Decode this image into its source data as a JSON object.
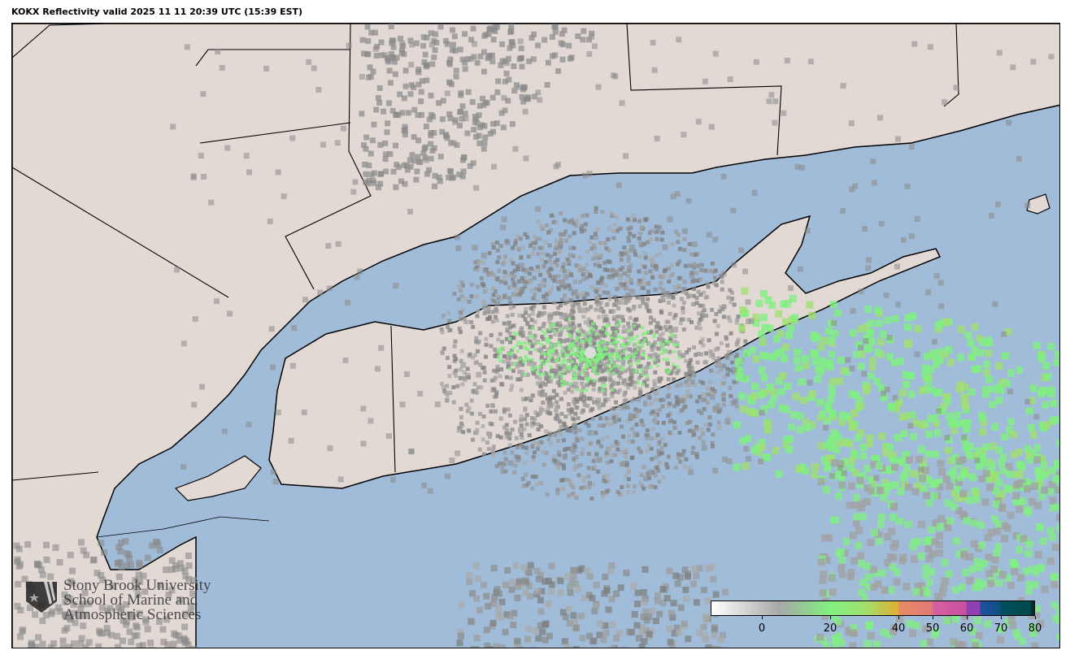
{
  "title": "KOKX Reflectivity valid 2025 11 11 20:39 UTC (15:39 EST)",
  "map": {
    "ocean_color": "#a0bcd8",
    "land_color": "#e2d9d5",
    "radar_site": "KOKX"
  },
  "logo": {
    "line1": "Stony Brook University",
    "line2": "School of Marine and",
    "line3": "Atmospheric Sciences"
  },
  "colorbar": {
    "min": -15,
    "max": 80,
    "ticks": [
      {
        "value": 0,
        "label": "0"
      },
      {
        "value": 20,
        "label": "20"
      },
      {
        "value": 40,
        "label": "40"
      },
      {
        "value": 50,
        "label": "50"
      },
      {
        "value": 60,
        "label": "60"
      },
      {
        "value": 70,
        "label": "70"
      },
      {
        "value": 80,
        "label": "80"
      }
    ],
    "stops": [
      {
        "value": -15,
        "color": "#ffffff"
      },
      {
        "value": 5,
        "color": "#a8a8a8"
      },
      {
        "value": 20,
        "color": "#80f080"
      },
      {
        "value": 30,
        "color": "#a0e070"
      },
      {
        "value": 40,
        "color": "#e0b030"
      },
      {
        "value": 40.1,
        "color": "#e88c60"
      },
      {
        "value": 50,
        "color": "#e07878"
      },
      {
        "value": 50.1,
        "color": "#d860a0"
      },
      {
        "value": 60,
        "color": "#c850a0"
      },
      {
        "value": 60.1,
        "color": "#9040b0"
      },
      {
        "value": 64,
        "color": "#9040b0"
      },
      {
        "value": 64.1,
        "color": "#2050a0"
      },
      {
        "value": 70,
        "color": "#105080"
      },
      {
        "value": 70.1,
        "color": "#005060"
      },
      {
        "value": 79,
        "color": "#004848"
      },
      {
        "value": 79.1,
        "color": "#003030"
      },
      {
        "value": 80,
        "color": "#003030"
      }
    ]
  }
}
